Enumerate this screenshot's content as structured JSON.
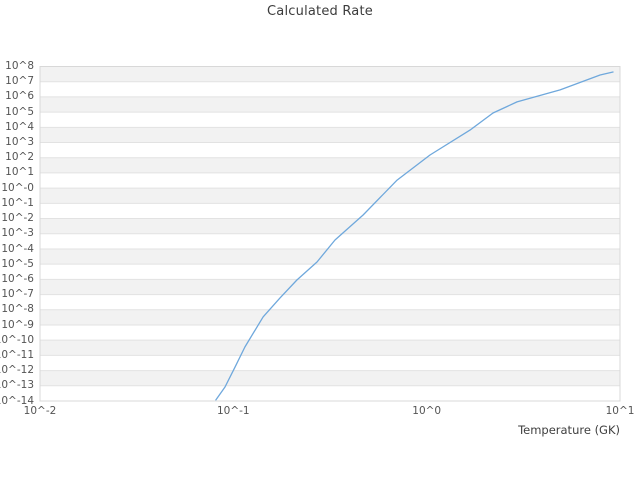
{
  "colors": {
    "line": "#6fa8dc",
    "band": "#f2f2f2",
    "grid": "#e2e2e2",
    "border": "#d8d8d8",
    "title_text": "#3c3c3c",
    "tick_text": "#545454"
  },
  "chart_data": {
    "type": "line",
    "title": "Calculated Rate",
    "xlabel": "Temperature (GK)",
    "ylabel": "",
    "x_scale": "log",
    "y_scale": "log",
    "xlim_log10": [
      -2,
      1
    ],
    "ylim_log10": [
      -14,
      8
    ],
    "grid": "horizontal-bands",
    "legend": "none",
    "x_ticks_log10": [
      -2,
      -1,
      0,
      1
    ],
    "x_tick_labels": [
      "10^-2",
      "10^-1",
      "10^0",
      "10^1"
    ],
    "y_tick_labels": [
      "10^8",
      "10^7",
      "10^6",
      "10^5",
      "10^4",
      "10^3",
      "10^2",
      "10^1",
      "10^-0",
      "10^-1",
      "10^-2",
      "10^-3",
      "10^-4",
      "10^-5",
      "10^-6",
      "10^-7",
      "10^-8",
      "10^-9",
      "10^-10",
      "10^-11",
      "10^-12",
      "10^-13",
      "10^-14"
    ],
    "series": [
      {
        "name": "calculated rate",
        "color": "#6fa8dc",
        "log10_points": [
          [
            -1.09,
            -13.93
          ],
          [
            -1.043,
            -13.08
          ],
          [
            -0.991,
            -11.76
          ],
          [
            -0.94,
            -10.45
          ],
          [
            -0.846,
            -8.47
          ],
          [
            -0.759,
            -7.23
          ],
          [
            -0.671,
            -6.04
          ],
          [
            -0.567,
            -4.86
          ],
          [
            -0.474,
            -3.41
          ],
          [
            -0.329,
            -1.77
          ],
          [
            -0.153,
            0.53
          ],
          [
            0.017,
            2.18
          ],
          [
            0.224,
            3.82
          ],
          [
            0.343,
            4.94
          ],
          [
            0.467,
            5.67
          ],
          [
            0.69,
            6.46
          ],
          [
            0.897,
            7.44
          ],
          [
            0.964,
            7.64
          ]
        ],
        "temperatures_GK_approx": [
          0.081,
          0.091,
          0.102,
          0.115,
          0.142,
          0.174,
          0.213,
          0.271,
          0.336,
          0.469,
          0.703,
          1.04,
          1.67,
          2.2,
          2.93,
          4.9,
          7.89,
          9.2
        ]
      }
    ]
  }
}
